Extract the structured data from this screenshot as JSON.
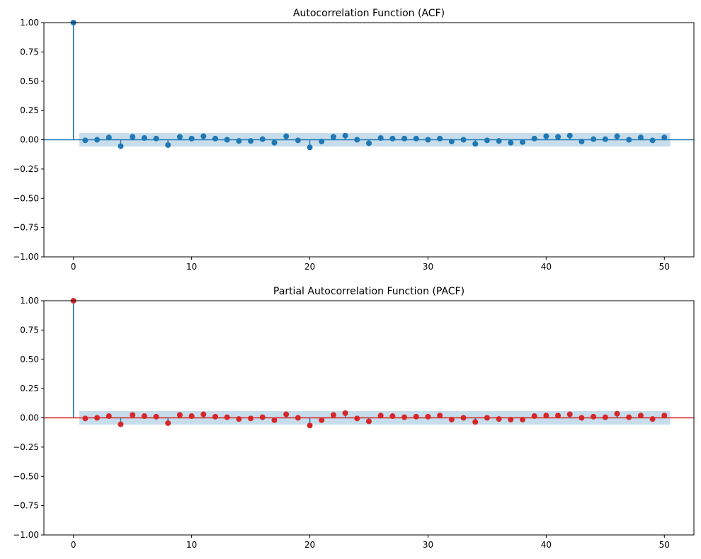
{
  "chart_data": [
    {
      "type": "stem",
      "title": "Autocorrelation Function (ACF)",
      "xlabel": "",
      "ylabel": "",
      "xlim": [
        -2.5,
        52.5
      ],
      "ylim": [
        -1.0,
        1.0
      ],
      "xticks": [
        0,
        10,
        20,
        30,
        40,
        50
      ],
      "xtick_labels": [
        "0",
        "10",
        "20",
        "30",
        "40",
        "50"
      ],
      "yticks": [
        -1.0,
        -0.75,
        -0.5,
        -0.25,
        0.0,
        0.25,
        0.5,
        0.75,
        1.0
      ],
      "ytick_labels": [
        "−1.00",
        "−0.75",
        "−0.50",
        "−0.25",
        "0.00",
        "0.25",
        "0.50",
        "0.75",
        "1.00"
      ],
      "grid": false,
      "confidence_band": {
        "x_range": [
          0.5,
          50.5
        ],
        "lower": -0.058,
        "upper": 0.058,
        "color": "#1f77b4",
        "opacity": 0.25
      },
      "colors": {
        "stem": "#1f77b4",
        "marker": "#1f77b4",
        "zero_line": "#1f77b4"
      },
      "x": [
        0,
        1,
        2,
        3,
        4,
        5,
        6,
        7,
        8,
        9,
        10,
        11,
        12,
        13,
        14,
        15,
        16,
        17,
        18,
        19,
        20,
        21,
        22,
        23,
        24,
        25,
        26,
        27,
        28,
        29,
        30,
        31,
        32,
        33,
        34,
        35,
        36,
        37,
        38,
        39,
        40,
        41,
        42,
        43,
        44,
        45,
        46,
        47,
        48,
        49,
        50
      ],
      "values": [
        1.0,
        -0.005,
        0.0,
        0.02,
        -0.055,
        0.025,
        0.015,
        0.01,
        -0.045,
        0.025,
        0.01,
        0.03,
        0.01,
        0.0,
        -0.01,
        -0.01,
        0.005,
        -0.025,
        0.03,
        -0.005,
        -0.065,
        -0.015,
        0.025,
        0.035,
        0.0,
        -0.03,
        0.015,
        0.01,
        0.01,
        0.01,
        0.0,
        0.01,
        -0.015,
        0.0,
        -0.035,
        -0.005,
        -0.01,
        -0.025,
        -0.02,
        0.01,
        0.03,
        0.025,
        0.035,
        -0.015,
        0.005,
        0.005,
        0.03,
        0.0,
        0.02,
        -0.005,
        0.02
      ]
    },
    {
      "type": "stem",
      "title": "Partial Autocorrelation Function (PACF)",
      "xlabel": "",
      "ylabel": "",
      "xlim": [
        -2.5,
        52.5
      ],
      "ylim": [
        -1.0,
        1.0
      ],
      "xticks": [
        0,
        10,
        20,
        30,
        40,
        50
      ],
      "xtick_labels": [
        "0",
        "10",
        "20",
        "30",
        "40",
        "50"
      ],
      "yticks": [
        -1.0,
        -0.75,
        -0.5,
        -0.25,
        0.0,
        0.25,
        0.5,
        0.75,
        1.0
      ],
      "ytick_labels": [
        "−1.00",
        "−0.75",
        "−0.50",
        "−0.25",
        "0.00",
        "0.25",
        "0.50",
        "0.75",
        "1.00"
      ],
      "grid": false,
      "confidence_band": {
        "x_range": [
          0.5,
          50.5
        ],
        "lower": -0.058,
        "upper": 0.058,
        "color": "#1f77b4",
        "opacity": 0.25
      },
      "colors": {
        "stem": "#1f77b4",
        "marker": "#d62728",
        "zero_line": "#d62728"
      },
      "x": [
        0,
        1,
        2,
        3,
        4,
        5,
        6,
        7,
        8,
        9,
        10,
        11,
        12,
        13,
        14,
        15,
        16,
        17,
        18,
        19,
        20,
        21,
        22,
        23,
        24,
        25,
        26,
        27,
        28,
        29,
        30,
        31,
        32,
        33,
        34,
        35,
        36,
        37,
        38,
        39,
        40,
        41,
        42,
        43,
        44,
        45,
        46,
        47,
        48,
        49,
        50
      ],
      "values": [
        1.0,
        -0.005,
        0.0,
        0.015,
        -0.055,
        0.025,
        0.015,
        0.01,
        -0.045,
        0.025,
        0.015,
        0.03,
        0.01,
        0.005,
        -0.01,
        -0.005,
        0.005,
        -0.02,
        0.03,
        0.0,
        -0.065,
        -0.02,
        0.025,
        0.04,
        -0.005,
        -0.03,
        0.02,
        0.015,
        0.005,
        0.01,
        0.01,
        0.02,
        -0.015,
        0.0,
        -0.035,
        0.0,
        -0.01,
        -0.015,
        -0.015,
        0.015,
        0.02,
        0.02,
        0.03,
        0.0,
        0.01,
        0.005,
        0.035,
        0.005,
        0.02,
        -0.01,
        0.02
      ]
    }
  ]
}
